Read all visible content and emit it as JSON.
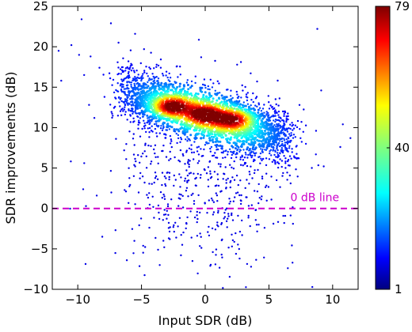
{
  "chart_data": {
    "type": "scatter",
    "subtype": "density-colored scatter",
    "title": "",
    "xlabel": "Input SDR (dB)",
    "ylabel": "SDR improvements (dB)",
    "xlim": [
      -12,
      12
    ],
    "ylim": [
      -10,
      25
    ],
    "xticks": [
      -10,
      -5,
      0,
      5,
      10
    ],
    "yticks": [
      -10,
      -5,
      0,
      5,
      10,
      15,
      20,
      25
    ],
    "grid": false,
    "colormap": "jet",
    "colorbar": {
      "min": 1,
      "max": 79,
      "ticks": [
        {
          "value": 1,
          "label": "1"
        },
        {
          "value": 40,
          "label": "40"
        },
        {
          "value": 79,
          "label": "79"
        }
      ]
    },
    "reference_line": {
      "y": 0,
      "label": "0 dB line",
      "color": "#cc00cc",
      "style": "dashed"
    },
    "density_clusters": [
      {
        "x": -2.6,
        "y": 12.6,
        "peak_count": 79
      },
      {
        "x": 0.0,
        "y": 11.6,
        "peak_count": 72
      },
      {
        "x": 2.2,
        "y": 11.0,
        "peak_count": 68
      }
    ],
    "main_band": {
      "x_range": [
        -6.5,
        6.5
      ],
      "trend_intercept": 11.5,
      "trend_slope": -0.45,
      "spread": 1.8
    },
    "sparse_points": [
      [
        -11.5,
        19.5
      ],
      [
        -9.7,
        23.4
      ],
      [
        -10.5,
        20.2
      ],
      [
        -9.0,
        18.8
      ],
      [
        -7.4,
        22.9
      ],
      [
        -6.8,
        20.5
      ],
      [
        -4.8,
        19.7
      ],
      [
        -11.3,
        15.8
      ],
      [
        -9.9,
        19.0
      ],
      [
        -8.7,
        11.2
      ],
      [
        -9.5,
        16.5
      ],
      [
        -7.9,
        13.8
      ],
      [
        -8.3,
        17.4
      ],
      [
        -6.0,
        16.9
      ],
      [
        -5.5,
        21.6
      ],
      [
        -7.0,
        8.6
      ],
      [
        -6.2,
        6.1
      ],
      [
        -4.0,
        3.2
      ],
      [
        -3.2,
        1.5
      ],
      [
        -2.5,
        -2.3
      ],
      [
        -1.8,
        -4.5
      ],
      [
        -1.0,
        -6.5
      ],
      [
        -0.4,
        -3.1
      ],
      [
        0.6,
        -5.4
      ],
      [
        1.3,
        -1.8
      ],
      [
        2.1,
        -4.7
      ],
      [
        2.9,
        -3.3
      ],
      [
        3.6,
        -7.2
      ],
      [
        -3.7,
        -5.1
      ],
      [
        -2.9,
        -0.8
      ],
      [
        -4.4,
        1.9
      ],
      [
        -3.0,
        4.4
      ],
      [
        -1.5,
        2.2
      ],
      [
        0.3,
        1.0
      ],
      [
        1.0,
        3.6
      ],
      [
        1.9,
        0.6
      ],
      [
        2.6,
        2.9
      ],
      [
        3.4,
        -0.9
      ],
      [
        4.1,
        2.1
      ],
      [
        4.8,
        4.3
      ],
      [
        5.6,
        3.5
      ],
      [
        6.3,
        5.6
      ],
      [
        7.0,
        6.3
      ],
      [
        7.9,
        8.0
      ],
      [
        8.7,
        9.6
      ],
      [
        9.3,
        5.2
      ],
      [
        10.6,
        7.6
      ],
      [
        11.4,
        8.7
      ],
      [
        9.1,
        14.6
      ],
      [
        8.8,
        22.2
      ],
      [
        10.8,
        10.4
      ],
      [
        7.4,
        12.8
      ],
      [
        6.1,
        12.0
      ],
      [
        -0.6,
        -1.3
      ],
      [
        -2.1,
        0.3
      ],
      [
        0.8,
        -2.6
      ],
      [
        1.6,
        5.1
      ],
      [
        -1.2,
        5.9
      ],
      [
        -5.1,
        8.9
      ],
      [
        -5.6,
        4.0
      ],
      [
        -4.9,
        6.8
      ],
      [
        -3.4,
        7.1
      ],
      [
        2.4,
        6.7
      ],
      [
        3.1,
        5.5
      ],
      [
        4.5,
        7.3
      ],
      [
        5.2,
        1.1
      ],
      [
        6.7,
        3.1
      ],
      [
        -0.1,
        7.3
      ],
      [
        -2.2,
        8.1
      ],
      [
        0.4,
        -7.1
      ],
      [
        -1.9,
        -5.8
      ],
      [
        2.7,
        -6.2
      ],
      [
        -3.1,
        2.8
      ],
      [
        4.2,
        -2.0
      ]
    ]
  }
}
